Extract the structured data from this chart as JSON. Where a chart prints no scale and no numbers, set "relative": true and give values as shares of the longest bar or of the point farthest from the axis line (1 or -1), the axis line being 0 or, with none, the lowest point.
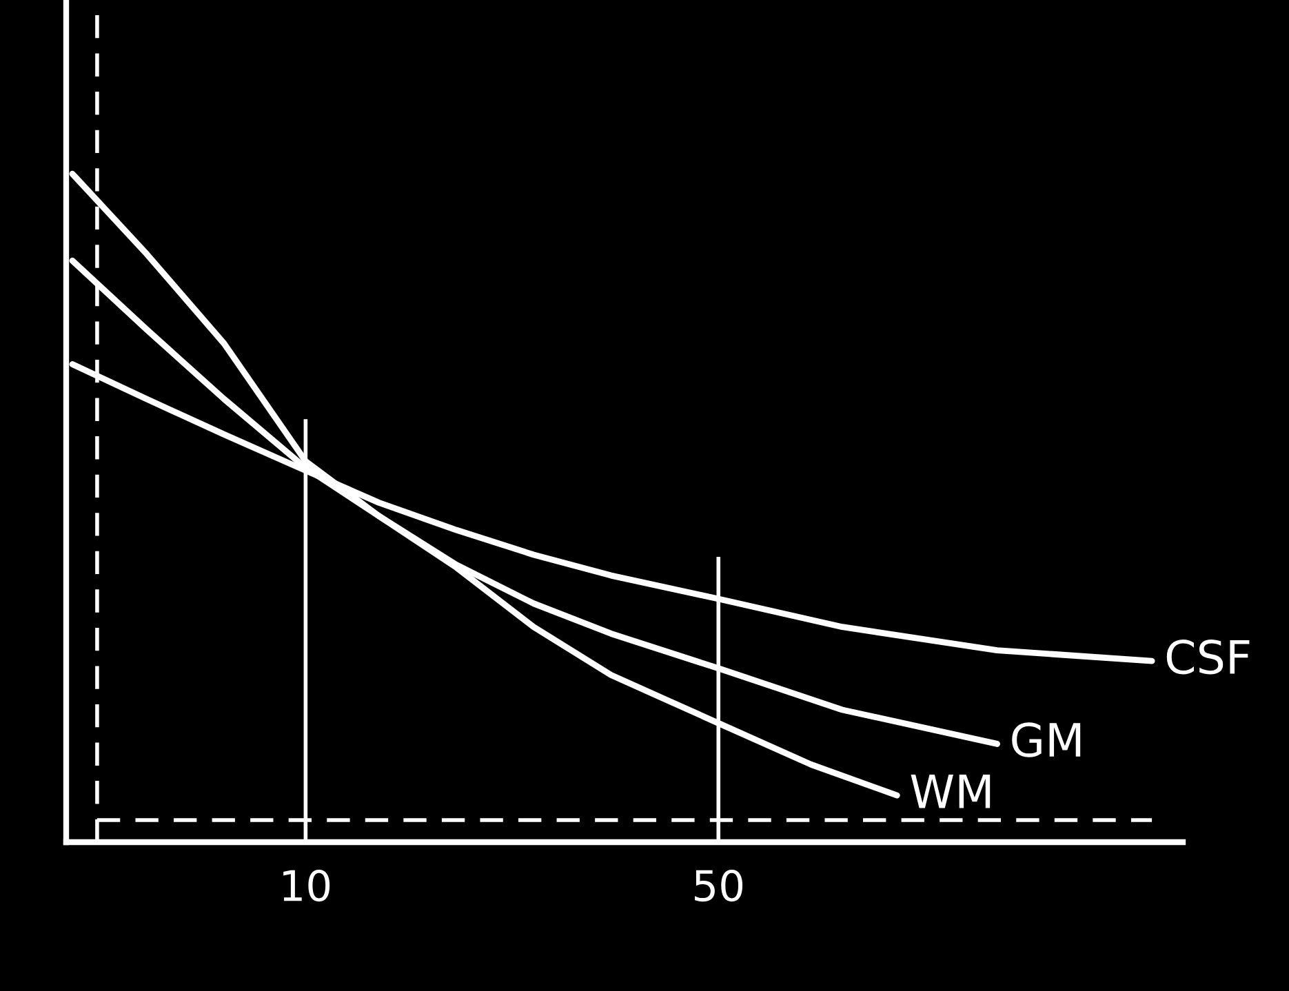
{
  "chart_data": {
    "type": "line",
    "relative": true,
    "xlim": [
      -13.2,
      95
    ],
    "xticks": [
      10,
      50
    ],
    "grid": false,
    "marker": "none",
    "line_style": "solid",
    "series": [
      {
        "name": "CSF",
        "color": "#ffffff",
        "x": [
          -12.6,
          -5.4,
          2.1,
          10,
          17.1,
          24.6,
          32.1,
          39.6,
          50,
          62,
          77,
          92
        ],
        "values": [
          0.715,
          0.663,
          0.61,
          0.556,
          0.508,
          0.467,
          0.43,
          0.399,
          0.364,
          0.322,
          0.287,
          0.271
        ]
      },
      {
        "name": "GM",
        "color": "#ffffff",
        "x": [
          -12.6,
          -5.4,
          2.1,
          10,
          17.1,
          24.6,
          32.1,
          39.6,
          50,
          62,
          77
        ],
        "values": [
          0.87,
          0.767,
          0.663,
          0.56,
          0.488,
          0.415,
          0.357,
          0.312,
          0.26,
          0.198,
          0.147
        ]
      },
      {
        "name": "WM",
        "color": "#ffffff",
        "x": [
          -12.6,
          -5.4,
          2.1,
          10,
          17.1,
          24.6,
          32.1,
          39.6,
          50,
          59,
          67.3
        ],
        "values": [
          1,
          0.88,
          0.746,
          0.57,
          0.488,
          0.411,
          0.322,
          0.25,
          0.178,
          0.116,
          0.07
        ]
      }
    ],
    "ref_lines": [
      {
        "axis": "x",
        "value": 10,
        "color": "#ffffff",
        "line_style": "solid"
      },
      {
        "axis": "x",
        "value": 50,
        "color": "#ffffff",
        "line_style": "solid"
      },
      {
        "axis": "x",
        "value": -10.2,
        "color": "#ffffff",
        "line_style": "dashed"
      },
      {
        "axis": "y",
        "value": 0.033,
        "color": "#ffffff",
        "line_style": "dashed"
      }
    ]
  }
}
